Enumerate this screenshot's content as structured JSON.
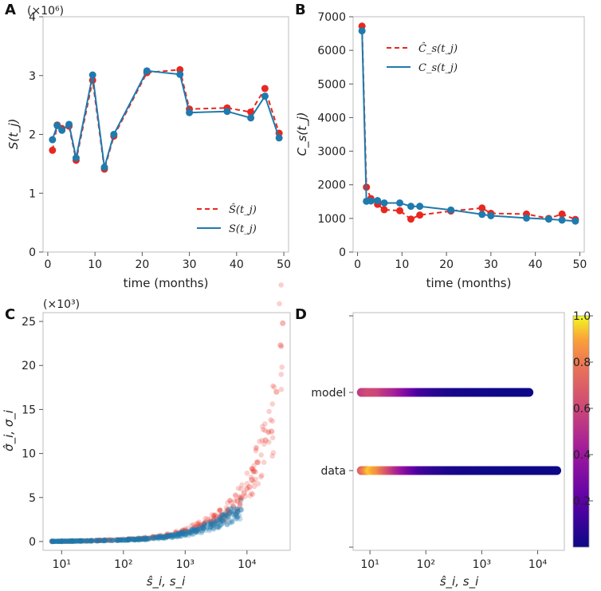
{
  "figure": {
    "panels": [
      {
        "letter": "A",
        "ylabel": "S(t_j)",
        "xlabel": "time (months)",
        "multiplier": "(×10⁶)"
      },
      {
        "letter": "B",
        "ylabel": "C_s(t_j)",
        "xlabel": "time (months)"
      },
      {
        "letter": "C",
        "ylabel": "σ̂_i, σ_i",
        "xlabel": "ŝ_i, s_i",
        "multiplier": "(×10³)"
      },
      {
        "letter": "D",
        "xlabel": "ŝ_i, s_i"
      }
    ]
  },
  "colors": {
    "model_red": "#e8281e",
    "data_blue": "#1f7aad"
  },
  "chart_data": [
    {
      "type": "line",
      "panel": "A",
      "title": "",
      "xlabel": "time (months)",
      "ylabel": "S(t_j)",
      "y_multiplier": "(×10⁶)",
      "xlim": [
        -1,
        51
      ],
      "ylim": [
        0,
        4
      ],
      "xticks": [
        0,
        10,
        20,
        30,
        40,
        50
      ],
      "yticks": [
        0,
        1,
        2,
        3,
        4
      ],
      "legend_position": "lower-right",
      "series": [
        {
          "name": "Ŝ(t_j)",
          "style": "dashed",
          "color": "#e8281e",
          "x": [
            1,
            2,
            3,
            4.5,
            6,
            9.5,
            12,
            14,
            21,
            28,
            30,
            38,
            43,
            46,
            49
          ],
          "y": [
            1.73,
            2.16,
            2.1,
            2.14,
            1.56,
            2.92,
            1.41,
            1.97,
            3.05,
            3.1,
            2.43,
            2.45,
            2.38,
            2.78,
            2.02
          ]
        },
        {
          "name": "S(t_j)",
          "style": "solid",
          "color": "#1f7aad",
          "x": [
            1,
            2,
            3,
            4.5,
            6,
            9.5,
            12,
            14,
            21,
            28,
            30,
            38,
            43,
            46,
            49
          ],
          "y": [
            1.91,
            2.15,
            2.07,
            2.17,
            1.6,
            3.01,
            1.44,
            2.0,
            3.08,
            3.02,
            2.37,
            2.39,
            2.28,
            2.65,
            1.94
          ]
        }
      ]
    },
    {
      "type": "line",
      "panel": "B",
      "title": "",
      "xlabel": "time (months)",
      "ylabel": "C_s(t_j)",
      "xlim": [
        -1,
        51
      ],
      "ylim": [
        0,
        7000
      ],
      "xticks": [
        0,
        10,
        20,
        30,
        40,
        50
      ],
      "yticks": [
        0,
        1000,
        2000,
        3000,
        4000,
        5000,
        6000,
        7000
      ],
      "legend_position": "top-right",
      "series": [
        {
          "name": "Ĉ_s(t_j)",
          "style": "dashed",
          "color": "#e8281e",
          "x": [
            1,
            2,
            3,
            4.5,
            6,
            9.5,
            12,
            14,
            21,
            28,
            30,
            38,
            43,
            46,
            49
          ],
          "y": [
            6720,
            1930,
            1590,
            1420,
            1260,
            1230,
            980,
            1100,
            1220,
            1310,
            1150,
            1130,
            1000,
            1130,
            970
          ]
        },
        {
          "name": "C_s(t_j)",
          "style": "solid",
          "color": "#1f7aad",
          "x": [
            1,
            2,
            3,
            4.5,
            6,
            9.5,
            12,
            14,
            21,
            28,
            30,
            38,
            43,
            46,
            49
          ],
          "y": [
            6580,
            1510,
            1520,
            1530,
            1460,
            1460,
            1360,
            1360,
            1250,
            1120,
            1080,
            1010,
            980,
            950,
            920
          ]
        }
      ]
    },
    {
      "type": "scatter",
      "panel": "C",
      "title": "",
      "xlabel": "ŝ_i, s_i",
      "ylabel": "σ̂_i, σ_i",
      "y_multiplier": "(×10³)",
      "xscale": "log",
      "xlim": [
        5,
        50000
      ],
      "ylim": [
        -1,
        26
      ],
      "xticks": [
        10,
        100,
        1000,
        10000
      ],
      "xtick_labels": [
        "10¹",
        "10²",
        "10³",
        "10⁴"
      ],
      "yticks": [
        0,
        5,
        10,
        15,
        20,
        25
      ],
      "series": [
        {
          "name": "model",
          "color": "#e8281e",
          "alpha": 0.35,
          "x": [
            7,
            10,
            15,
            20,
            30,
            50,
            80,
            120,
            200,
            300,
            500,
            700,
            1000,
            1500,
            2000,
            3000,
            4000,
            5000,
            6000,
            7000,
            8000,
            9000,
            10000,
            11000,
            12000,
            13000,
            15000,
            20000,
            25000,
            30000,
            35000,
            38000
          ],
          "y": [
            0.02,
            0.03,
            0.05,
            0.07,
            0.1,
            0.15,
            0.2,
            0.25,
            0.35,
            0.5,
            0.7,
            1.0,
            1.2,
            1.6,
            2.0,
            2.6,
            3.0,
            3.5,
            4.0,
            4.6,
            5.0,
            5.5,
            6.0,
            6.2,
            7.0,
            8.0,
            9.0,
            11.5,
            12.5,
            17.0,
            22.3,
            24.8
          ]
        },
        {
          "name": "data",
          "color": "#1f7aad",
          "alpha": 0.45,
          "x": [
            7,
            10,
            15,
            20,
            30,
            50,
            80,
            120,
            200,
            300,
            500,
            700,
            1000,
            1500,
            2000,
            3000,
            4000,
            5000,
            6000,
            7000,
            8000
          ],
          "y": [
            0.02,
            0.03,
            0.05,
            0.06,
            0.08,
            0.12,
            0.15,
            0.2,
            0.28,
            0.4,
            0.55,
            0.7,
            0.9,
            1.2,
            1.5,
            2.0,
            2.4,
            2.8,
            3.1,
            3.4,
            3.6
          ]
        }
      ]
    },
    {
      "type": "heatmap",
      "panel": "D",
      "title": "",
      "xlabel": "ŝ_i, s_i",
      "xscale": "log",
      "xlim": [
        5,
        30000
      ],
      "xticks": [
        10,
        100,
        1000,
        10000
      ],
      "xtick_labels": [
        "10¹",
        "10²",
        "10³",
        "10⁴"
      ],
      "rows": [
        "model",
        "data"
      ],
      "colorbar": {
        "min": 0,
        "max": 1.0,
        "ticks": [
          0.2,
          0.4,
          0.6,
          0.8,
          1.0
        ],
        "tick_labels": [
          "0.2",
          "0.4",
          "0.6",
          "0.8",
          "1.0"
        ],
        "colormap": "plasma"
      },
      "row_data": [
        {
          "name": "model",
          "x_range": [
            7,
            7000
          ],
          "density_x": [
            7,
            10,
            15,
            20,
            30,
            50,
            80,
            150,
            300,
            1000,
            3000,
            7000
          ],
          "density_v": [
            0.55,
            0.62,
            0.6,
            0.52,
            0.45,
            0.3,
            0.15,
            0.08,
            0.03,
            0.01,
            0.0,
            0.0
          ]
        },
        {
          "name": "data",
          "x_range": [
            7,
            22000
          ],
          "density_x": [
            7,
            10,
            15,
            20,
            30,
            50,
            80,
            150,
            300,
            1000,
            3000,
            10000,
            22000
          ],
          "density_v": [
            0.7,
            0.95,
            0.85,
            0.7,
            0.5,
            0.3,
            0.15,
            0.08,
            0.03,
            0.01,
            0.0,
            0.0,
            0.0
          ]
        }
      ]
    }
  ]
}
